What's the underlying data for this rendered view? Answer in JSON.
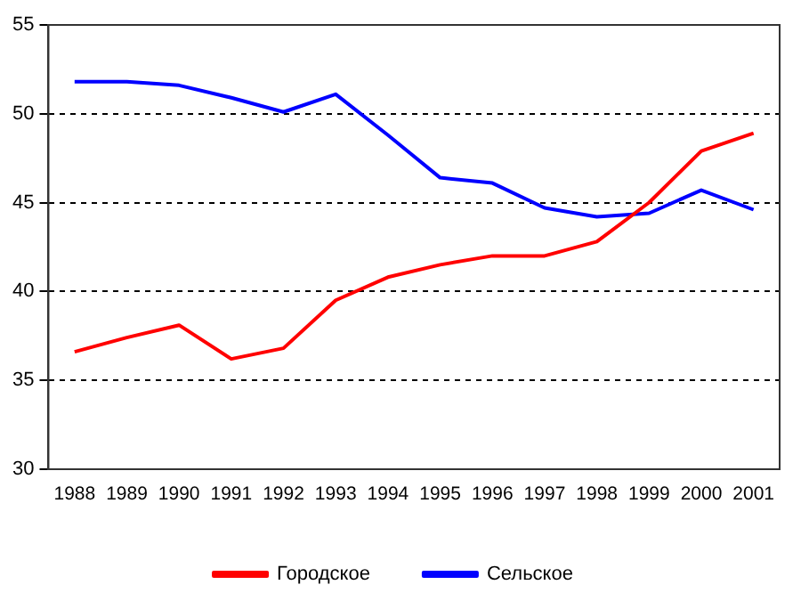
{
  "chart_data": {
    "type": "line",
    "categories": [
      "1988",
      "1989",
      "1990",
      "1991",
      "1992",
      "1993",
      "1994",
      "1995",
      "1996",
      "1997",
      "1998",
      "1999",
      "2000",
      "2001"
    ],
    "series": [
      {
        "name": "Городское",
        "color": "#ff0000",
        "values": [
          36.6,
          37.4,
          38.1,
          36.2,
          36.8,
          39.5,
          40.8,
          41.5,
          42.0,
          42.0,
          42.8,
          45.0,
          47.9,
          48.9
        ]
      },
      {
        "name": "Сельское",
        "color": "#0000ff",
        "values": [
          51.8,
          51.8,
          51.6,
          50.9,
          50.1,
          51.1,
          48.8,
          46.4,
          46.1,
          44.7,
          44.2,
          44.4,
          45.7,
          44.6
        ]
      }
    ],
    "ylim": [
      30,
      55
    ],
    "yticks": [
      30,
      35,
      40,
      45,
      50,
      55
    ],
    "grid": "y",
    "legend": "bottom",
    "marker": "none",
    "line_style": "solid"
  }
}
